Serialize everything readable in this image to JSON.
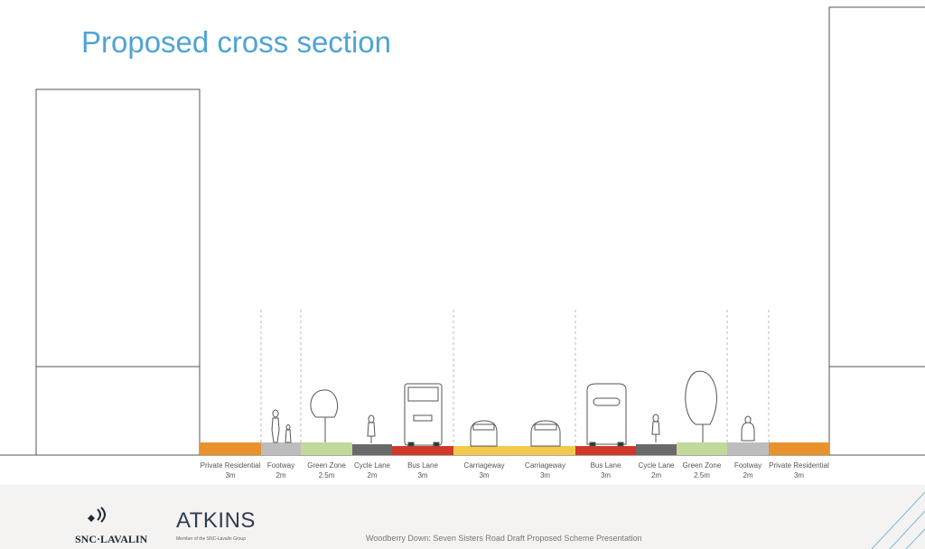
{
  "title": "Proposed cross section",
  "segments": [
    {
      "name": "Private Residential",
      "width": "3m",
      "color": "#e8922e"
    },
    {
      "name": "Footway",
      "width": "2m",
      "color": "#bdbdbd"
    },
    {
      "name": "Green Zone",
      "width": "2.5m",
      "color": "#c3d99a"
    },
    {
      "name": "Cycle Lane",
      "width": "2m",
      "color": "#6a6a6a"
    },
    {
      "name": "Bus Lane",
      "width": "3m",
      "color": "#d0382a"
    },
    {
      "name": "Carriageway",
      "width": "3m",
      "color": "#f2c94c"
    },
    {
      "name": "Carriageway",
      "width": "3m",
      "color": "#f2c94c"
    },
    {
      "name": "Bus Lane",
      "width": "3m",
      "color": "#d0382a"
    },
    {
      "name": "Cycle Lane",
      "width": "2m",
      "color": "#6a6a6a"
    },
    {
      "name": "Green Zone",
      "width": "2.5m",
      "color": "#c3d99a"
    },
    {
      "name": "Footway",
      "width": "2m",
      "color": "#bdbdbd"
    },
    {
      "name": "Private Residential",
      "width": "3m",
      "color": "#e8922e"
    }
  ],
  "footer": {
    "snc": "SNC·LAVALIN",
    "atkins": "ATKINS",
    "atkins_sub": "Member of the SNC-Lavalin Group",
    "caption": "Woodberry Down: Seven Sisters Road Draft Proposed Scheme Presentation"
  }
}
